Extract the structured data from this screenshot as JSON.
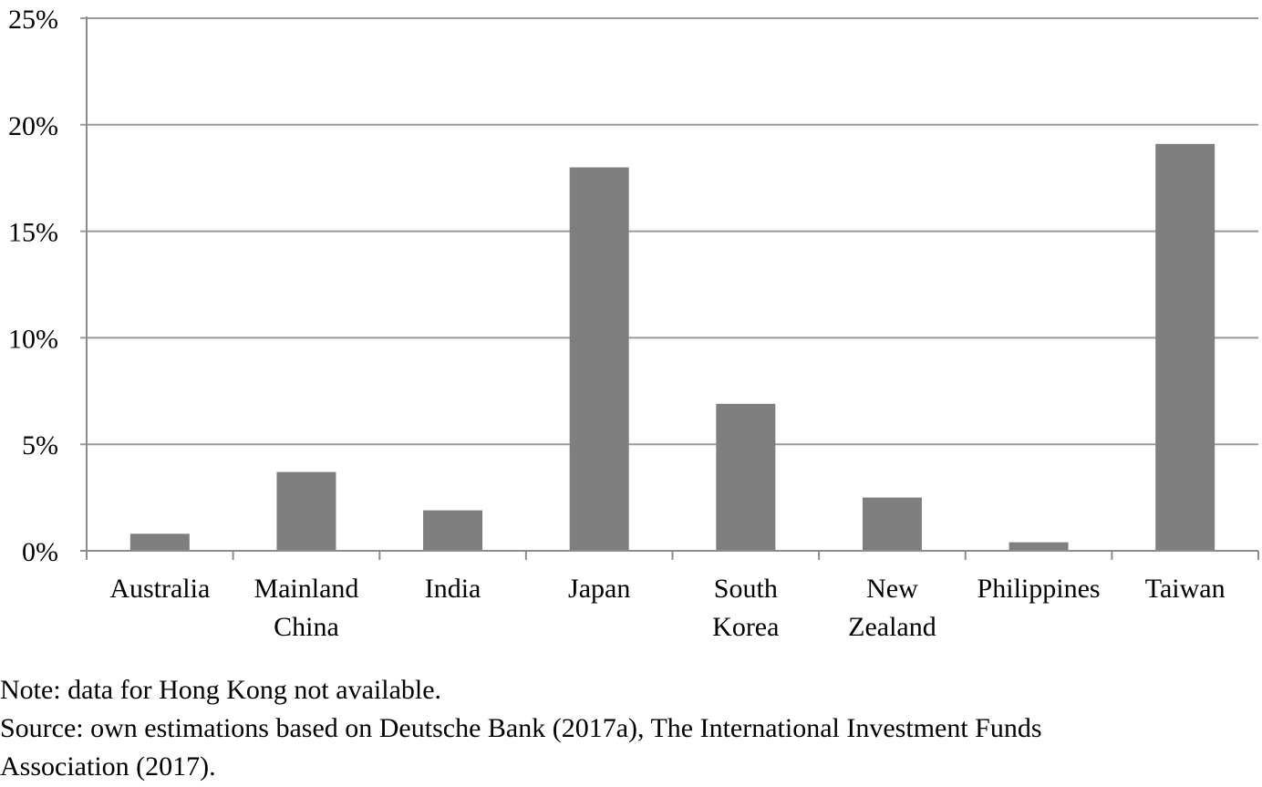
{
  "chart_data": {
    "type": "bar",
    "categories": [
      [
        "Australia"
      ],
      [
        "Mainland",
        "China"
      ],
      [
        "India"
      ],
      [
        "Japan"
      ],
      [
        "South",
        "Korea"
      ],
      [
        "New",
        "Zealand"
      ],
      [
        "Philippines"
      ],
      [
        "Taiwan"
      ]
    ],
    "values": [
      0.8,
      3.7,
      1.9,
      18.0,
      6.9,
      2.5,
      0.4,
      19.1
    ],
    "y_ticks": [
      "0%",
      "5%",
      "10%",
      "15%",
      "20%",
      "25%"
    ],
    "ylim": [
      0,
      25
    ],
    "grid": true,
    "bar_color": "#7f7f7f",
    "grid_color": "#9a9a9a",
    "axis_color": "#8c8c8c"
  },
  "notes": {
    "note": "Note: data for Hong Kong not available.",
    "source_line1": "Source: own estimations based on Deutsche Bank (2017a), The International Investment Funds",
    "source_line2": "Association (2017)."
  }
}
